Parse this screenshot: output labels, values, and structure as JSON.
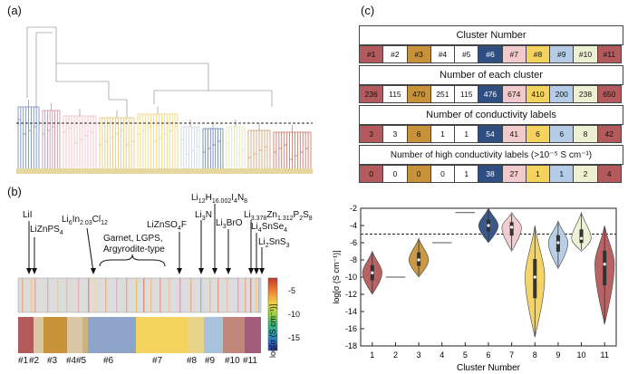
{
  "panels": {
    "a": "(a)",
    "b": "(b)",
    "c": "(c)"
  },
  "panel_b": {
    "annotations": [
      {
        "id": "lii",
        "text": "LiI"
      },
      {
        "id": "liznps4",
        "text": "LiZnPS",
        "sub": "4"
      },
      {
        "id": "li6in",
        "text": "Li",
        "parts": [
          "Li",
          "6",
          "In",
          "2.03",
          "Cl",
          "12"
        ]
      },
      {
        "id": "group",
        "text": "Garnet, LGPS,"
      },
      {
        "id": "group2",
        "text": "Argyrodite-type"
      },
      {
        "id": "liznso4f",
        "text": "LiZnSO4F"
      },
      {
        "id": "li3n",
        "text": "Li3N"
      },
      {
        "id": "li12h",
        "text": "Li12H16.002I4N8"
      },
      {
        "id": "li3bro",
        "text": "Li3BrO"
      },
      {
        "id": "li3378",
        "text": "Li3.378Zn1.312P2S8"
      },
      {
        "id": "li4snse4",
        "text": "Li4SnSe4"
      },
      {
        "id": "li2sns3",
        "text": "Li2SnS3"
      }
    ],
    "colorbar": {
      "label": "log[σ (S cm⁻¹)]",
      "ticks": [
        "-5",
        "-10",
        "-15"
      ]
    },
    "cluster_labels": [
      "#1",
      "#2",
      "#3",
      "#4",
      "#5",
      "#6",
      "#7",
      "#8",
      "#9",
      "#10",
      "#11"
    ]
  },
  "table": {
    "cluster_number_title": "Cluster Number",
    "cluster_ids": [
      "#1",
      "#2",
      "#3",
      "#4",
      "#5",
      "#6",
      "#7",
      "#8",
      "#9",
      "#10",
      "#11"
    ],
    "count_title": "Number of each cluster",
    "counts": [
      "236",
      "115",
      "470",
      "251",
      "115",
      "476",
      "674",
      "410",
      "200",
      "238",
      "650"
    ],
    "cond_title": "Number of conductivity labels",
    "cond_counts": [
      "3",
      "3",
      "6",
      "1",
      "1",
      "54",
      "41",
      "6",
      "6",
      "8",
      "42"
    ],
    "high_title": "Number of high conductivity labels (>10⁻⁵ S cm⁻¹)",
    "high_counts": [
      "0",
      "0",
      "0",
      "0",
      "1",
      "38",
      "27",
      "1",
      "1",
      "2",
      "4"
    ]
  },
  "colors": {
    "c1": "#b55a5c",
    "c2": "#ffffff",
    "c3": "#c89239",
    "c4": "#ffffff",
    "c5": "#ffffff",
    "c6": "#2f4f82",
    "c7": "#f2c9cd",
    "c8": "#f3d25e",
    "c9": "#b4cce6",
    "c10": "#eef0d4",
    "c11": "#b55a5c"
  },
  "chart_data": {
    "type": "violin",
    "title": "",
    "xlabel": "Cluster Number",
    "ylabel": "log[σ (S cm⁻¹)]",
    "categories": [
      "1",
      "2",
      "3",
      "4",
      "5",
      "6",
      "7",
      "8",
      "9",
      "10",
      "11"
    ],
    "ylim": [
      -18,
      -2
    ],
    "yticks": [
      "-2",
      "-4",
      "-6",
      "-8",
      "-10",
      "-12",
      "-14",
      "-16",
      "-18"
    ],
    "threshold": -5,
    "series": [
      {
        "name": "1",
        "min": -12,
        "max": -7,
        "median": -9.5
      },
      {
        "name": "2",
        "min": -10,
        "max": -10,
        "median": -10
      },
      {
        "name": "3",
        "min": -10,
        "max": -5.5,
        "median": -8
      },
      {
        "name": "4",
        "min": -6,
        "max": -6,
        "median": -6
      },
      {
        "name": "5",
        "min": -2.5,
        "max": -2.5,
        "median": -2.5
      },
      {
        "name": "6",
        "min": -6,
        "max": -2,
        "median": -4
      },
      {
        "name": "7",
        "min": -7,
        "max": -2.5,
        "median": -4.2
      },
      {
        "name": "8",
        "min": -17,
        "max": -4,
        "median": -10
      },
      {
        "name": "9",
        "min": -9,
        "max": -3.5,
        "median": -6
      },
      {
        "name": "10",
        "min": -7,
        "max": -2.5,
        "median": -5.5
      },
      {
        "name": "11",
        "min": -15.5,
        "max": -4,
        "median": -8.5
      }
    ]
  }
}
